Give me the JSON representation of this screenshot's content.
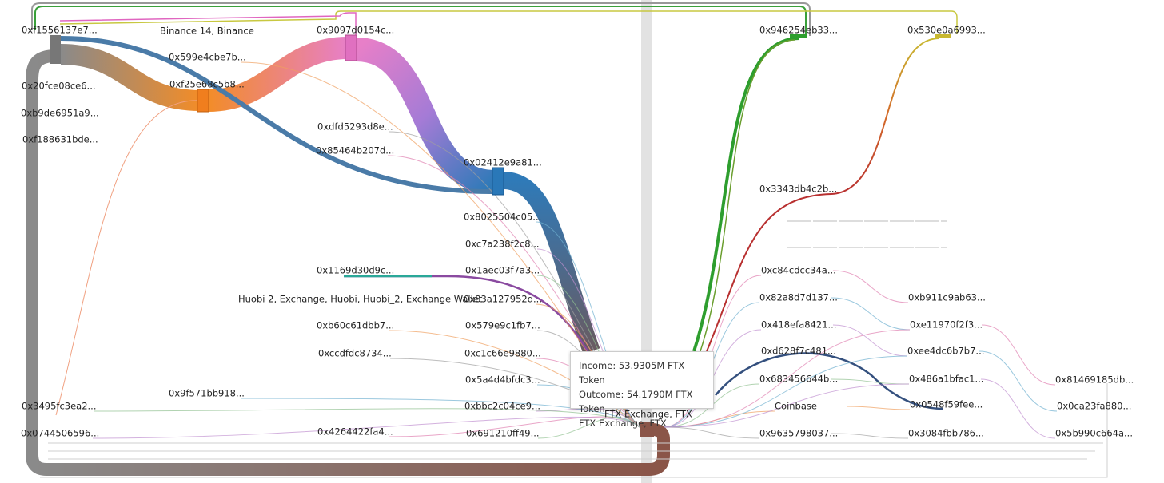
{
  "nodes": [
    {
      "label": "0xf1556137e7..."
    },
    {
      "label": "Binance 14, Binance"
    },
    {
      "label": "0x9097d0154c..."
    },
    {
      "label": "0x946254eb33..."
    },
    {
      "label": "0x530e0a6993..."
    },
    {
      "label": "0x599e4cbe7b..."
    },
    {
      "label": "0x20fce08ce6..."
    },
    {
      "label": "0xf25e68c5b8..."
    },
    {
      "label": "0xb9de6951a9..."
    },
    {
      "label": "0xf188631bde..."
    },
    {
      "label": "0xdfd5293d8e..."
    },
    {
      "label": "0x85464b207d..."
    },
    {
      "label": "0x02412e9a81..."
    },
    {
      "label": "0x3343db4c2b..."
    },
    {
      "label": "0x8025504c05..."
    },
    {
      "label": "0xc7a238f2c8..."
    },
    {
      "label": "0x1169d30d9c..."
    },
    {
      "label": "0x1aec03f7a3..."
    },
    {
      "label": "0xc84cdcc34a..."
    },
    {
      "label": "Huobi 2, Exchange, Huobi, Huobi_2, Exchange Wallet"
    },
    {
      "label": "0x83a127952d..."
    },
    {
      "label": "0x82a8d7d137..."
    },
    {
      "label": "0xb911c9ab63..."
    },
    {
      "label": "0xb60c61dbb7..."
    },
    {
      "label": "0x579e9c1fb7..."
    },
    {
      "label": "0x418efa8421..."
    },
    {
      "label": "0xe11970f2f3..."
    },
    {
      "label": "0xccdfdc8734..."
    },
    {
      "label": "0xc1c66e9880..."
    },
    {
      "label": "0xd628f7c481..."
    },
    {
      "label": "0xee4dc6b7b7..."
    },
    {
      "label": "0x5a4d4bfdc3..."
    },
    {
      "label": "0x683456644b..."
    },
    {
      "label": "0x486a1bfac1..."
    },
    {
      "label": "0x81469185db..."
    },
    {
      "label": "0x9f571bb918..."
    },
    {
      "label": "0x3495fc3ea2..."
    },
    {
      "label": "0xbbc2c04ce9..."
    },
    {
      "label": "Coinbase"
    },
    {
      "label": "0x0548f59fee..."
    },
    {
      "label": "0x0ca23fa880..."
    },
    {
      "label": "FTX Exchange, FTX"
    },
    {
      "label": "0x0744506596..."
    },
    {
      "label": "0x4264422fa4..."
    },
    {
      "label": "0x691210ff49..."
    },
    {
      "label": "0x9635798037..."
    },
    {
      "label": "0x3084fbb786..."
    },
    {
      "label": "0x5b990c664a..."
    }
  ],
  "tooltip": {
    "lines": [
      "Income: 53.9305M FTX Token",
      "Outcome: 54.1790M FTX Token",
      "FTX Exchange, FTX"
    ]
  }
}
